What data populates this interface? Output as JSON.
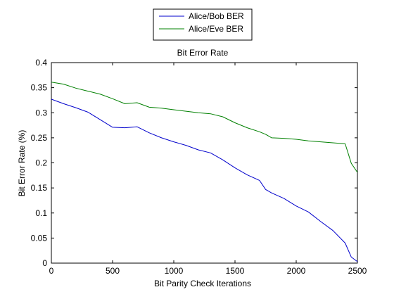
{
  "chart_data": {
    "type": "line",
    "title": "Bit Error Rate",
    "xlabel": "Bit Parity Check Iterations",
    "ylabel": "Bit Error Rate (%)",
    "xlim": [
      0,
      2500
    ],
    "ylim": [
      0,
      0.4
    ],
    "xticks": [
      0,
      500,
      1000,
      1500,
      2000,
      2500
    ],
    "xtick_labels": [
      "0",
      "500",
      "1000",
      "1500",
      "2000",
      "2500"
    ],
    "yticks": [
      0,
      0.05,
      0.1,
      0.15,
      0.2,
      0.25,
      0.3,
      0.35,
      0.4
    ],
    "ytick_labels": [
      "0",
      "0.05",
      "0.1",
      "0.15",
      "0.2",
      "0.25",
      "0.3",
      "0.35",
      "0.4"
    ],
    "grid": false,
    "legend_position": "top-center, outside the axes",
    "series": [
      {
        "name": "Alice/Bob BER",
        "color": "#0000cc",
        "x": [
          0,
          100,
          200,
          300,
          400,
          500,
          600,
          700,
          800,
          900,
          1000,
          1100,
          1200,
          1300,
          1400,
          1500,
          1600,
          1700,
          1750,
          1800,
          1900,
          2000,
          2100,
          2200,
          2300,
          2400,
          2450,
          2500
        ],
        "y": [
          0.327,
          0.318,
          0.31,
          0.301,
          0.286,
          0.271,
          0.27,
          0.272,
          0.26,
          0.25,
          0.242,
          0.235,
          0.226,
          0.22,
          0.206,
          0.19,
          0.176,
          0.165,
          0.147,
          0.14,
          0.129,
          0.114,
          0.102,
          0.083,
          0.065,
          0.04,
          0.012,
          0.003
        ]
      },
      {
        "name": "Alice/Eve BER",
        "color": "#008000",
        "x": [
          0,
          100,
          200,
          300,
          400,
          500,
          600,
          700,
          800,
          900,
          1000,
          1100,
          1200,
          1300,
          1400,
          1500,
          1600,
          1700,
          1750,
          1800,
          1900,
          2000,
          2100,
          2200,
          2300,
          2400,
          2450,
          2500
        ],
        "y": [
          0.361,
          0.357,
          0.349,
          0.343,
          0.337,
          0.328,
          0.318,
          0.32,
          0.311,
          0.309,
          0.306,
          0.303,
          0.3,
          0.298,
          0.292,
          0.28,
          0.27,
          0.262,
          0.257,
          0.25,
          0.249,
          0.247,
          0.244,
          0.242,
          0.24,
          0.238,
          0.199,
          0.181
        ]
      }
    ]
  }
}
